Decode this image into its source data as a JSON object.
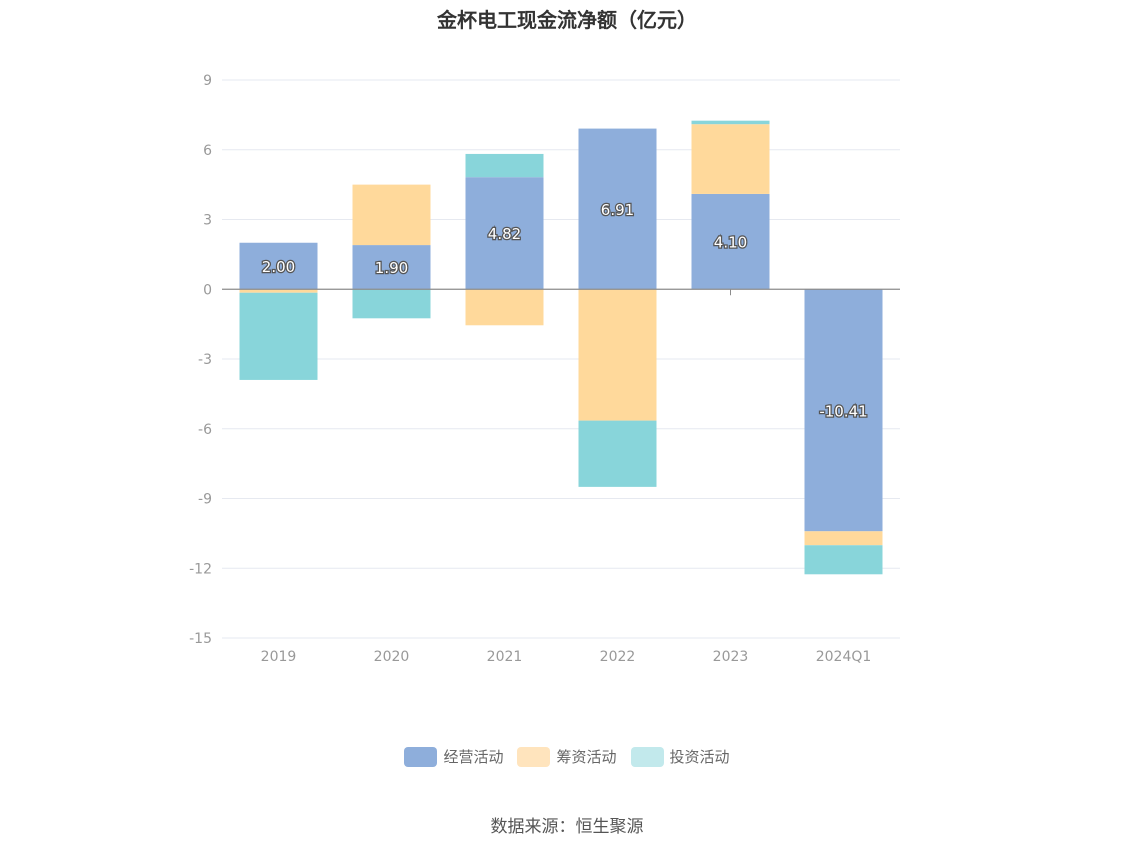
{
  "chart_data": {
    "type": "bar",
    "stacked": true,
    "title": "金杯电工现金流净额（亿元）",
    "categories": [
      "2019",
      "2020",
      "2021",
      "2022",
      "2023",
      "2024Q1"
    ],
    "series": [
      {
        "name": "经营活动",
        "color": "#8eaedb",
        "values": [
          2.0,
          1.9,
          4.82,
          6.91,
          4.1,
          -10.41
        ]
      },
      {
        "name": "筹资活动",
        "color": "#ffd99b",
        "values": [
          -0.15,
          2.6,
          -1.55,
          -5.65,
          3.0,
          -0.6
        ]
      },
      {
        "name": "投资活动",
        "color": "#88d5da",
        "values": [
          -3.75,
          -1.25,
          1.0,
          -2.85,
          0.15,
          -1.25
        ]
      }
    ],
    "data_labels": [
      "2.00",
      "1.90",
      "4.82",
      "6.91",
      "4.10",
      "-10.41"
    ],
    "y_ticks": [
      "9",
      "6",
      "3",
      "0",
      "-3",
      "-6",
      "-9",
      "-12",
      "-15"
    ],
    "ylim": [
      -15,
      9
    ],
    "grid": true,
    "legend_position": "bottom"
  },
  "legend": [
    {
      "label": "经营活动",
      "color": "#8eaedb"
    },
    {
      "label": "筹资活动",
      "color": "#ffe4bd"
    },
    {
      "label": "投资活动",
      "color": "#c2e9ec"
    }
  ],
  "source": "数据来源：恒生聚源"
}
